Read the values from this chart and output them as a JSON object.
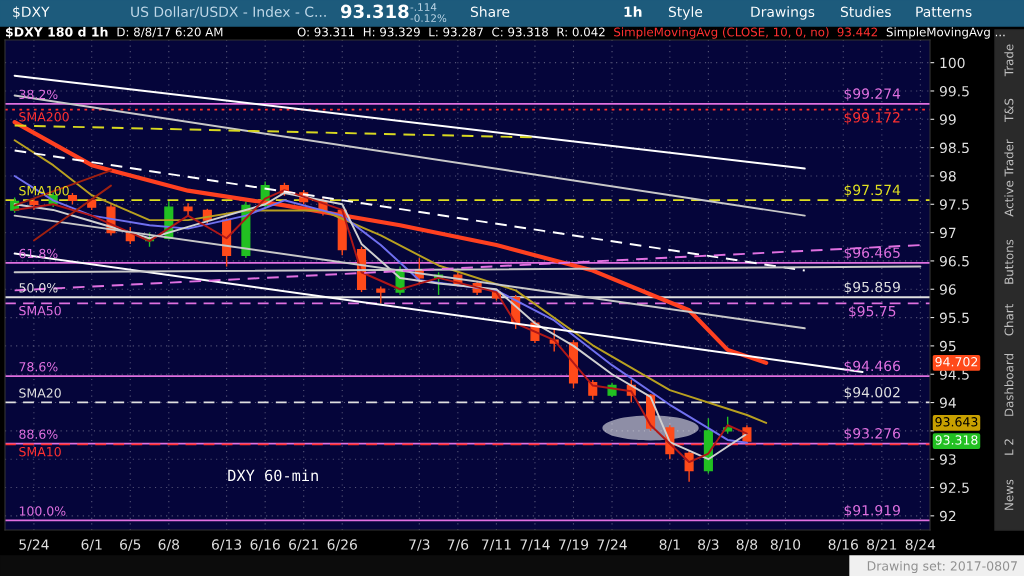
{
  "chart_data": {
    "type": "candlestick",
    "title": "$DXY 180 d 1h",
    "categories": [
      null,
      "5/24",
      null,
      null,
      "6/1",
      null,
      "6/5",
      null,
      "6/8",
      null,
      null,
      "6/13",
      null,
      "6/16",
      null,
      "6/21",
      null,
      "6/26",
      null,
      null,
      null,
      "7/3",
      null,
      "7/6",
      null,
      "7/11",
      null,
      "7/14",
      null,
      "7/19",
      null,
      "7/24",
      null,
      null,
      "8/1",
      null,
      "8/3",
      null,
      "8/8",
      null,
      "8/10",
      null,
      null,
      "8/16",
      null,
      "8/21",
      null,
      "8/24"
    ],
    "ohlc": [
      [
        97.4,
        97.62,
        97.35,
        97.55
      ],
      [
        97.55,
        97.6,
        97.4,
        97.5
      ],
      [
        97.5,
        97.72,
        97.45,
        97.65
      ],
      [
        97.65,
        97.7,
        97.5,
        97.57
      ],
      [
        97.57,
        97.6,
        97.4,
        97.45
      ],
      [
        97.45,
        97.5,
        96.95,
        97.0
      ],
      [
        97.0,
        97.1,
        96.8,
        96.86
      ],
      [
        96.86,
        97.0,
        96.75,
        96.9
      ],
      [
        96.9,
        97.55,
        96.88,
        97.45
      ],
      [
        97.45,
        97.52,
        97.3,
        97.39
      ],
      [
        97.39,
        97.42,
        97.15,
        97.22
      ],
      [
        97.22,
        97.25,
        96.4,
        96.6
      ],
      [
        96.6,
        97.55,
        96.55,
        97.48
      ],
      [
        97.48,
        97.9,
        97.45,
        97.83
      ],
      [
        97.83,
        97.88,
        97.65,
        97.7
      ],
      [
        97.7,
        97.75,
        97.5,
        97.55
      ],
      [
        97.55,
        97.6,
        97.3,
        97.39
      ],
      [
        97.39,
        97.42,
        96.6,
        96.7
      ],
      [
        96.7,
        96.75,
        95.95,
        96.0
      ],
      [
        96.0,
        96.05,
        95.75,
        95.95
      ],
      [
        95.95,
        96.4,
        95.9,
        96.33
      ],
      [
        96.33,
        96.55,
        96.1,
        96.2
      ],
      [
        96.2,
        96.3,
        95.9,
        96.25
      ],
      [
        96.25,
        96.3,
        96.05,
        96.1
      ],
      [
        96.1,
        96.15,
        95.9,
        95.95
      ],
      [
        95.95,
        96.0,
        95.8,
        95.85
      ],
      [
        95.85,
        95.9,
        95.3,
        95.4
      ],
      [
        95.4,
        95.45,
        95.05,
        95.1
      ],
      [
        95.1,
        95.3,
        94.9,
        95.05
      ],
      [
        95.05,
        95.1,
        94.25,
        94.35
      ],
      [
        94.35,
        94.4,
        94.05,
        94.13
      ],
      [
        94.13,
        94.35,
        94.1,
        94.3
      ],
      [
        94.3,
        94.4,
        94.0,
        94.13
      ],
      [
        94.13,
        94.15,
        93.5,
        93.55
      ],
      [
        93.55,
        93.6,
        93.0,
        93.1
      ],
      [
        93.1,
        93.15,
        92.6,
        92.8
      ],
      [
        92.8,
        93.72,
        92.75,
        93.5
      ],
      [
        93.5,
        93.75,
        93.45,
        93.55
      ],
      [
        93.55,
        93.6,
        93.29,
        93.32
      ],
      null,
      null,
      null,
      null,
      null,
      null,
      null,
      null,
      null
    ],
    "series": [
      {
        "type": "line",
        "color": "#ff4020",
        "values": [
          98.95,
          null,
          null,
          null,
          98.19,
          null,
          null,
          null,
          null,
          97.74,
          null,
          null,
          null,
          null,
          97.48,
          null,
          null,
          null,
          null,
          null,
          97.13,
          null,
          null,
          null,
          null,
          96.78,
          null,
          null,
          null,
          null,
          96.33,
          null,
          null,
          null,
          null,
          95.63,
          null,
          94.93,
          null,
          94.7,
          null,
          null,
          null,
          null,
          null,
          null,
          null,
          null
        ]
      },
      {
        "type": "line",
        "color": "#b8a020",
        "values": [
          98.63,
          null,
          98.19,
          null,
          97.66,
          null,
          null,
          97.22,
          null,
          97.22,
          null,
          null,
          97.39,
          null,
          null,
          null,
          97.39,
          null,
          null,
          96.95,
          null,
          null,
          96.42,
          null,
          null,
          null,
          95.98,
          null,
          null,
          null,
          95.01,
          null,
          null,
          null,
          94.22,
          null,
          null,
          null,
          93.78,
          93.64,
          null,
          null,
          null,
          null,
          null,
          null,
          null,
          null
        ]
      },
      {
        "type": "line",
        "color": "#7070f0",
        "values": [
          98.0,
          null,
          97.57,
          null,
          97.3,
          null,
          null,
          97.13,
          null,
          97.07,
          null,
          null,
          97.3,
          null,
          97.57,
          null,
          null,
          97.3,
          null,
          96.78,
          null,
          96.16,
          null,
          null,
          null,
          95.98,
          null,
          null,
          95.45,
          null,
          null,
          94.66,
          null,
          null,
          93.96,
          null,
          null,
          93.34,
          93.29,
          null,
          null,
          null,
          null,
          null,
          null,
          null,
          null,
          null
        ]
      },
      {
        "type": "line",
        "color": "#d0d0d0",
        "values": [
          97.5,
          null,
          97.4,
          null,
          97.2,
          null,
          null,
          96.9,
          null,
          97.1,
          null,
          null,
          null,
          97.5,
          97.7,
          null,
          null,
          97.5,
          96.8,
          null,
          96.2,
          null,
          96.1,
          null,
          null,
          96.0,
          null,
          95.4,
          null,
          95.0,
          null,
          94.5,
          null,
          94.1,
          93.3,
          null,
          93.0,
          null,
          93.45,
          null,
          null,
          null,
          null,
          null,
          null,
          null,
          null,
          null
        ]
      },
      {
        "type": "line",
        "color": "#b01818",
        "values": [
          97.4,
          null,
          97.5,
          null,
          97.3,
          null,
          null,
          96.85,
          null,
          97.3,
          null,
          96.9,
          null,
          97.6,
          97.75,
          null,
          null,
          97.4,
          96.3,
          null,
          96.0,
          null,
          96.2,
          null,
          null,
          95.95,
          95.4,
          null,
          95.1,
          null,
          94.3,
          null,
          94.2,
          93.6,
          null,
          92.95,
          93.1,
          93.6,
          93.45,
          null,
          null,
          null,
          null,
          null,
          null,
          null,
          null,
          null
        ]
      },
      {
        "type": "line",
        "color": "#ffffff",
        "values": [
          99.77,
          null,
          null,
          null,
          null,
          null,
          null,
          null,
          null,
          null,
          null,
          null,
          null,
          null,
          null,
          null,
          null,
          null,
          null,
          null,
          null,
          null,
          null,
          null,
          null,
          null,
          null,
          null,
          null,
          null,
          null,
          null,
          null,
          null,
          null,
          null,
          null,
          null,
          null,
          null,
          null,
          98.13,
          null,
          null,
          null,
          null,
          null,
          null
        ]
      },
      {
        "type": "line",
        "color": "#c8c8c8",
        "values": [
          99.42,
          null,
          null,
          null,
          null,
          null,
          null,
          null,
          null,
          null,
          null,
          null,
          null,
          null,
          null,
          null,
          null,
          null,
          null,
          null,
          null,
          null,
          null,
          null,
          null,
          null,
          null,
          null,
          null,
          null,
          null,
          null,
          null,
          null,
          null,
          null,
          null,
          null,
          null,
          null,
          null,
          97.3,
          null,
          null,
          null,
          null,
          null,
          null
        ]
      },
      {
        "type": "line",
        "color": "#ffffff",
        "line_style": "dashed",
        "values": [
          98.45,
          null,
          null,
          null,
          null,
          null,
          null,
          null,
          null,
          null,
          null,
          null,
          null,
          null,
          null,
          null,
          null,
          null,
          null,
          null,
          null,
          null,
          null,
          null,
          null,
          null,
          null,
          null,
          null,
          null,
          null,
          null,
          null,
          null,
          null,
          null,
          null,
          null,
          null,
          null,
          null,
          96.33,
          null,
          null,
          null,
          null,
          null,
          null
        ]
      },
      {
        "type": "line",
        "color": "#ffffff",
        "values": [
          96.63,
          null,
          null,
          null,
          null,
          null,
          null,
          null,
          null,
          null,
          null,
          null,
          null,
          null,
          null,
          null,
          null,
          null,
          null,
          null,
          null,
          null,
          null,
          null,
          null,
          null,
          null,
          null,
          null,
          null,
          null,
          null,
          null,
          null,
          null,
          null,
          null,
          null,
          null,
          null,
          null,
          null,
          null,
          null,
          94.54,
          null,
          null,
          null
        ]
      },
      {
        "type": "line",
        "color": "#c8c8c8",
        "values": [
          97.3,
          null,
          null,
          null,
          null,
          null,
          null,
          null,
          null,
          null,
          null,
          null,
          null,
          null,
          null,
          null,
          null,
          null,
          null,
          null,
          null,
          null,
          null,
          null,
          null,
          null,
          null,
          null,
          null,
          null,
          null,
          null,
          null,
          null,
          null,
          null,
          null,
          null,
          null,
          null,
          null,
          95.31,
          null,
          null,
          null,
          null,
          null,
          null
        ]
      },
      {
        "type": "line",
        "color": "#c8c8c8",
        "values": [
          96.3,
          null,
          null,
          null,
          null,
          null,
          null,
          null,
          null,
          null,
          null,
          null,
          null,
          null,
          null,
          null,
          null,
          null,
          null,
          null,
          null,
          null,
          null,
          null,
          null,
          null,
          null,
          null,
          null,
          null,
          null,
          null,
          null,
          null,
          null,
          null,
          null,
          null,
          null,
          null,
          null,
          null,
          null,
          null,
          null,
          null,
          null,
          96.4
        ]
      },
      {
        "type": "line",
        "color": "#e070e0",
        "line_style": "dashed",
        "values": [
          95.98,
          null,
          null,
          null,
          null,
          null,
          null,
          null,
          null,
          null,
          null,
          null,
          null,
          null,
          null,
          null,
          null,
          null,
          null,
          null,
          null,
          null,
          null,
          null,
          null,
          null,
          null,
          null,
          null,
          null,
          null,
          null,
          null,
          null,
          null,
          null,
          null,
          null,
          null,
          null,
          null,
          null,
          null,
          null,
          null,
          null,
          null,
          96.78
        ]
      },
      {
        "type": "line",
        "color": "#d8d820",
        "line_style": "dashed",
        "values": [
          98.89,
          null,
          null,
          null,
          null,
          null,
          null,
          null,
          null,
          null,
          null,
          null,
          null,
          null,
          null,
          null,
          null,
          null,
          null,
          null,
          null,
          null,
          null,
          null,
          null,
          null,
          null,
          98.68,
          null,
          null,
          null,
          null,
          null,
          null,
          null,
          null,
          null,
          null,
          null,
          null,
          null,
          null,
          null,
          null,
          null,
          null,
          null,
          null
        ]
      },
      {
        "type": "line",
        "color": "#a02010",
        "values": [
          97.48,
          null,
          null,
          null,
          null,
          98.1,
          null,
          null,
          null,
          null,
          null,
          null,
          null,
          null,
          null,
          null,
          null,
          null,
          null,
          null,
          null,
          null,
          null,
          null,
          null,
          null,
          null,
          null,
          null,
          null,
          null,
          null,
          null,
          null,
          null,
          null,
          null,
          null,
          null,
          null,
          null,
          null,
          null,
          null,
          null,
          null,
          null,
          null
        ]
      },
      {
        "type": "line",
        "color": "#a02010",
        "values": [
          null,
          96.86,
          null,
          null,
          null,
          97.83,
          null,
          null,
          null,
          null,
          null,
          null,
          null,
          null,
          null,
          null,
          null,
          null,
          null,
          null,
          null,
          null,
          null,
          null,
          null,
          null,
          null,
          null,
          null,
          null,
          null,
          null,
          null,
          null,
          null,
          null,
          null,
          null,
          null,
          null,
          null,
          null,
          null,
          null,
          null,
          null,
          null,
          null
        ]
      }
    ],
    "ref_lines": [
      {
        "axis": "y",
        "value": 99.274,
        "label": "$99.274",
        "color": "#e070e0",
        "line_style": "solid"
      },
      {
        "axis": "y",
        "value": 99.172,
        "label": "$99.172",
        "color": "#ff3030",
        "line_style": "dotted"
      },
      {
        "axis": "y",
        "value": 97.574,
        "label": "$97.574",
        "color": "#e0e020",
        "line_style": "dashed"
      },
      {
        "axis": "y",
        "value": 96.465,
        "label": "$96.465",
        "color": "#e070e0",
        "line_style": "solid"
      },
      {
        "axis": "y",
        "value": 95.859,
        "label": "$95.859",
        "color": "#e0e0e0",
        "line_style": "solid"
      },
      {
        "axis": "y",
        "value": 95.75,
        "label": "$95.75",
        "color": "#e070e0",
        "line_style": "dashed"
      },
      {
        "axis": "y",
        "value": 94.466,
        "label": "$94.466",
        "color": "#e070e0",
        "line_style": "solid"
      },
      {
        "axis": "y",
        "value": 94.002,
        "label": "$94.002",
        "color": "#e0e0e0",
        "line_style": "dashed"
      },
      {
        "axis": "y",
        "value": 93.276,
        "label": "$93.276",
        "color": "#e070e0",
        "line_style": "solid"
      },
      {
        "axis": "y",
        "value": 93.26,
        "label": null,
        "color": "#ff3030",
        "line_style": "dashed"
      },
      {
        "axis": "y",
        "value": 91.919,
        "label": "$91.919",
        "color": "#e070e0",
        "line_style": "solid"
      }
    ],
    "annotations": [
      {
        "text": "38.2%",
        "y": 99.274
      },
      {
        "text": "SMA200",
        "y": 99.172
      },
      {
        "text": "SMA100",
        "y": 97.574
      },
      {
        "text": "61.8%",
        "y": 96.465
      },
      {
        "text": "50.0%",
        "y": 95.859
      },
      {
        "text": "SMA50",
        "y": 95.75
      },
      {
        "text": "78.6%",
        "y": 94.466
      },
      {
        "text": "SMA20",
        "y": 94.002
      },
      {
        "text": "88.6%",
        "y": 93.276
      },
      {
        "text": "SMA10",
        "y": 93.26
      },
      {
        "text": "100.0%",
        "y": 91.919
      },
      "94.702",
      "93.643",
      "93.318",
      "DXY 60-min",
      "$DXY",
      "US Dollar/USDX - Index - C...",
      "93.318",
      "-.114",
      "-0.12%",
      "Share",
      "1h",
      "Style",
      "Drawings",
      "Studies",
      "Patterns",
      "D: 8/8/17 6:20 AM",
      "O: 93.311",
      "H: 93.329",
      "L: 93.287",
      "C: 93.318",
      "R: 0.042",
      "SimpleMovingAvg (CLOSE, 10, 0, no)",
      "93.442",
      "SimpleMovingAvg ...",
      "Trade",
      "T&S",
      "Active Trader",
      "Buttons",
      "Chart",
      "Dashboard",
      "L 2",
      "News",
      "Drawing set: 2017-0807"
    ],
    "ylim": [
      91.75,
      100.4
    ],
    "yticks": [
      92,
      92.5,
      93,
      {
        "value": 93.5,
        "label": null
      },
      94,
      94.5,
      95,
      95.5,
      96,
      96.5,
      97,
      97.5,
      98,
      98.5,
      99,
      99.5,
      100
    ],
    "grid": true,
    "legend": false,
    "marker": "none"
  }
}
